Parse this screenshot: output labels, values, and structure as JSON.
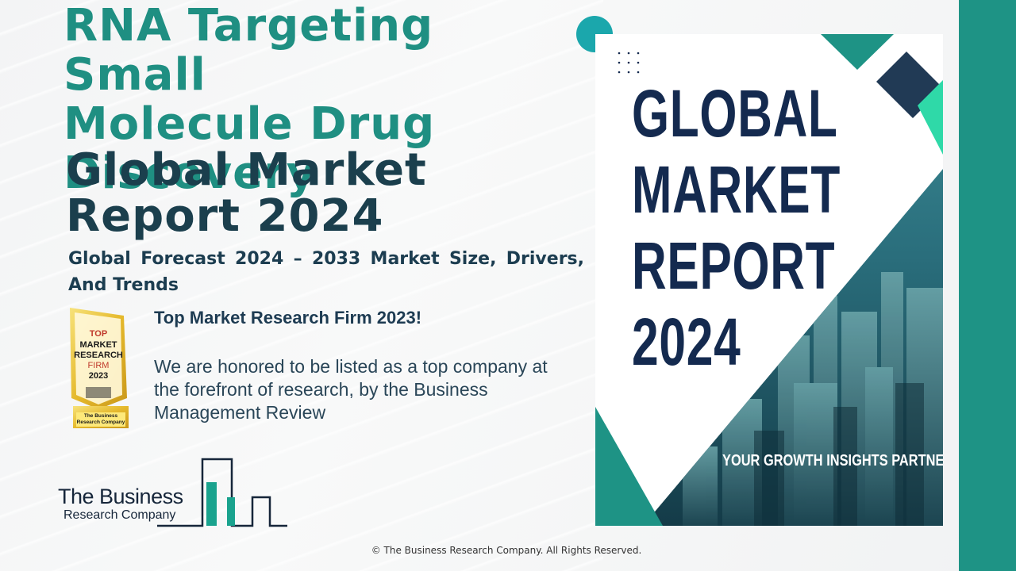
{
  "title": {
    "line1": "RNA Targeting Small",
    "line2": "Molecule Drug",
    "line3": "Discovery",
    "line4": "Global Market",
    "line5": "Report 2024"
  },
  "subtitle": "Global Forecast 2024 – 2033 Market Size, Drivers, And Trends",
  "award": {
    "badge_lines": [
      "TOP",
      "MARKET",
      "RESEARCH",
      "FIRM",
      "2023"
    ],
    "badge_footer": "The Business Research Company",
    "heading": "Top Market Research Firm 2023!",
    "text": "We are honored to be listed as a top company at the forefront of research, by the Business Management Review"
  },
  "logo": {
    "line1": "The Business",
    "line2": "Research Company"
  },
  "cover": {
    "title_lines": [
      "GLOBAL",
      "MARKET",
      "REPORT",
      "2024"
    ],
    "tagline": "YOUR GROWTH INSIGHTS PARTNER"
  },
  "footer": "© The Business Research Company. All Rights Reserved.",
  "colors": {
    "teal": "#1f8f82",
    "navy": "#1b3f4d",
    "strip": "#1e9385"
  }
}
